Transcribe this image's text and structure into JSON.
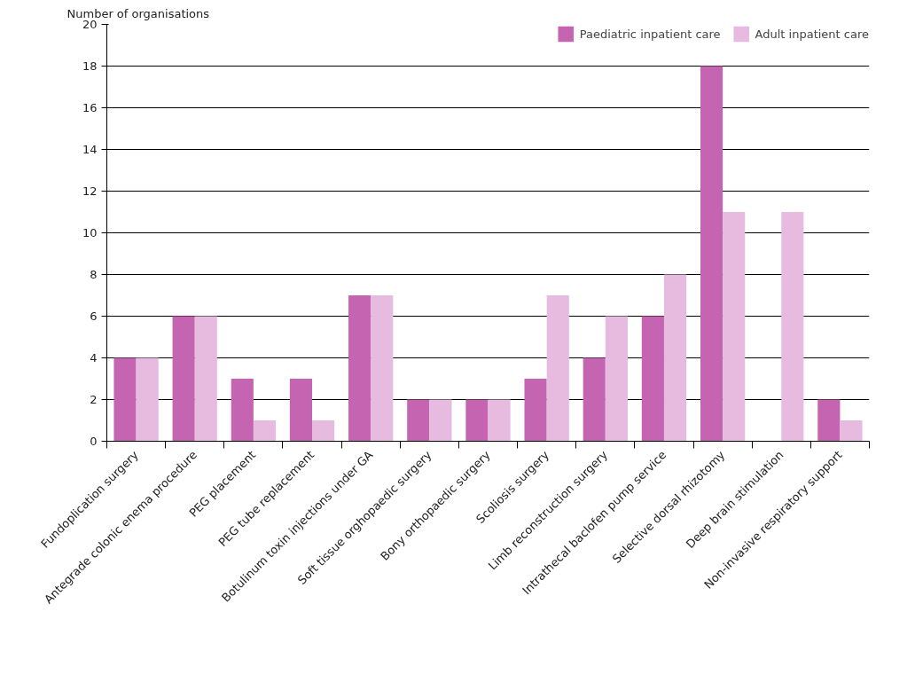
{
  "chart_data": {
    "type": "bar",
    "ylabel": "Number of organisations",
    "categories": [
      "Fundoplication surgery",
      "Antegrade colonic enema procedure",
      "PEG placement",
      "PEG tube replacement",
      "Botulinum toxin injections under GA",
      "Soft tissue orghopaedic surgery",
      "Bony orthopaedic surgery",
      "Scoliosis surgery",
      "Limb reconstruction surgery",
      "Intrathecal baclofen pump service",
      "Selective dorsal rhizotomy",
      "Deep brain stimulation",
      "Non-invasive respiratory support"
    ],
    "series": [
      {
        "name": "Paediatric inpatient care",
        "color": "#c564b0",
        "values": [
          4,
          6,
          3,
          3,
          7,
          2,
          2,
          3,
          4,
          6,
          18,
          null,
          2
        ]
      },
      {
        "name": "Adult inpatient care",
        "color": "#e6bbdf",
        "values": [
          4,
          6,
          1,
          1,
          7,
          2,
          2,
          7,
          6,
          8,
          11,
          11,
          1
        ]
      }
    ],
    "ylim": [
      0,
      20
    ],
    "yticks": [
      0,
      2,
      4,
      6,
      8,
      10,
      12,
      14,
      16,
      18,
      20
    ],
    "grid": "y",
    "legend": "top right"
  }
}
